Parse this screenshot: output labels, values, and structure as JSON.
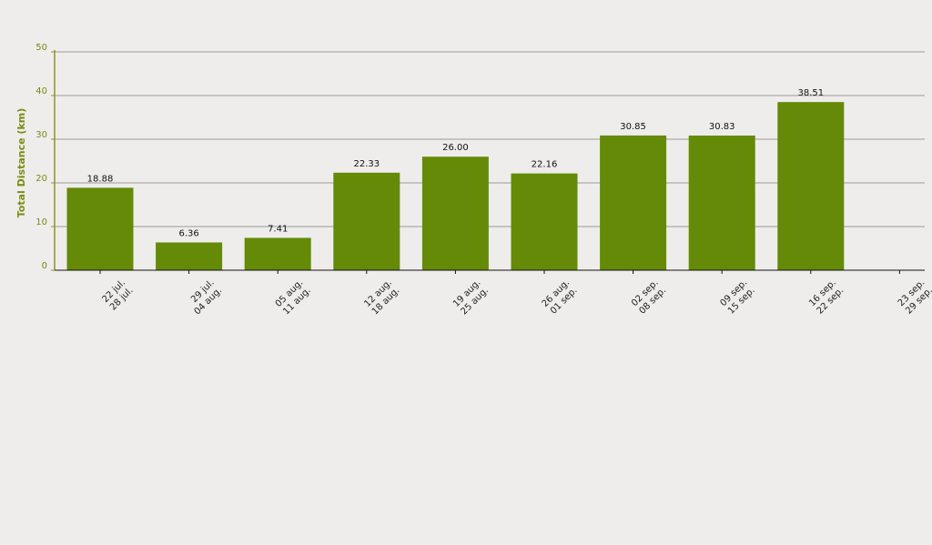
{
  "chart_data": {
    "type": "bar",
    "ylabel": "Total Distance (km)",
    "xlabel": "",
    "ylim": [
      0,
      50
    ],
    "yticks": [
      0,
      10,
      20,
      30,
      40,
      50
    ],
    "grid": true,
    "categories": [
      [
        "22 jul.",
        "28 jul."
      ],
      [
        "29 jul.",
        "04 aug."
      ],
      [
        "05 aug.",
        "11 aug."
      ],
      [
        "12 aug.",
        "18 aug."
      ],
      [
        "19 aug.",
        "25 aug."
      ],
      [
        "26 aug.",
        "01 sep."
      ],
      [
        "02 sep.",
        "08 sep."
      ],
      [
        "09 sep.",
        "15 sep."
      ],
      [
        "16 sep.",
        "22 sep."
      ],
      [
        "23 sep.",
        "29 sep."
      ]
    ],
    "values": [
      18.88,
      6.36,
      7.41,
      22.33,
      26.0,
      22.16,
      30.85,
      30.83,
      38.51,
      null
    ],
    "value_labels": [
      "18.88",
      "6.36",
      "7.41",
      "22.33",
      "26.00",
      "22.16",
      "30.85",
      "30.83",
      "38.51",
      ""
    ],
    "colors": {
      "bar": "#648a08",
      "axis": "#8a9a1a",
      "axis_text": "#7a8c10",
      "grid": "#9a9a9a",
      "background": "#eeedeb"
    }
  }
}
